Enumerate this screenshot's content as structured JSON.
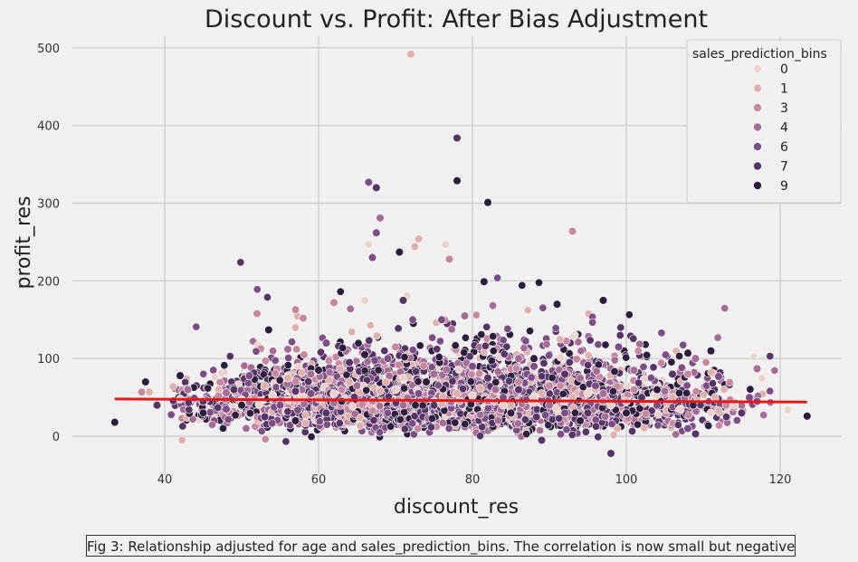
{
  "chart_data": {
    "type": "scatter",
    "title": "Discount vs. Profit: After Bias Adjustment",
    "xlabel": "discount_res",
    "ylabel": "profit_res",
    "xlim": [
      28,
      128
    ],
    "ylim": [
      -50,
      515
    ],
    "xticks": [
      40,
      60,
      80,
      100,
      120
    ],
    "yticks": [
      0,
      100,
      200,
      300,
      400,
      500
    ],
    "grid": true,
    "legend": {
      "title": "sales_prediction_bins",
      "placement": "top-right",
      "entries": [
        "0",
        "1",
        "3",
        "4",
        "6",
        "7",
        "9"
      ]
    },
    "series_colors": {
      "0": "#edd1cb",
      "1": "#e0b0ac",
      "3": "#c6879f",
      "4": "#a56c95",
      "6": "#7d4e85",
      "7": "#553466",
      "9": "#2d1e3e"
    },
    "regression_line": {
      "x": [
        33.5,
        123.5
      ],
      "y": [
        48,
        44
      ],
      "color": "#e3191c"
    },
    "series": [
      {
        "name": "0",
        "points": [
          [
            42,
            48
          ],
          [
            50,
            47
          ],
          [
            54,
            52
          ],
          [
            58,
            50
          ],
          [
            62,
            55
          ],
          [
            66.5,
            247
          ],
          [
            66,
            175
          ],
          [
            70,
            60
          ],
          [
            71.5,
            181
          ],
          [
            75,
            45
          ],
          [
            76.5,
            247
          ],
          [
            80,
            52
          ],
          [
            84,
            40
          ],
          [
            88,
            50
          ],
          [
            92,
            45
          ],
          [
            95,
            55
          ],
          [
            98,
            40
          ],
          [
            103,
            45
          ],
          [
            107,
            35
          ],
          [
            111,
            30
          ],
          [
            114,
            40
          ],
          [
            121,
            34
          ]
        ]
      },
      {
        "name": "1",
        "points": [
          [
            38,
            57
          ],
          [
            47,
            60
          ],
          [
            53,
            65
          ],
          [
            56,
            75
          ],
          [
            57,
            140
          ],
          [
            60,
            48
          ],
          [
            64,
            70
          ],
          [
            68,
            58
          ],
          [
            72,
            492
          ],
          [
            72.5,
            244
          ],
          [
            73,
            254
          ],
          [
            78,
            55
          ],
          [
            81,
            62
          ],
          [
            85,
            40
          ],
          [
            89,
            55
          ],
          [
            93,
            50
          ],
          [
            96,
            60
          ],
          [
            100,
            45
          ],
          [
            106,
            50
          ],
          [
            112,
            33
          ]
        ]
      },
      {
        "name": "3",
        "points": [
          [
            37,
            57
          ],
          [
            47,
            52
          ],
          [
            52,
            158
          ],
          [
            57,
            163
          ],
          [
            58,
            152
          ],
          [
            62,
            172
          ],
          [
            63,
            60
          ],
          [
            67,
            45
          ],
          [
            70,
            115
          ],
          [
            74,
            66
          ],
          [
            77,
            228
          ],
          [
            82,
            45
          ],
          [
            86,
            70
          ],
          [
            90,
            65
          ],
          [
            93,
            264
          ],
          [
            97,
            45
          ],
          [
            101,
            60
          ],
          [
            105,
            55
          ],
          [
            108,
            80
          ],
          [
            113,
            40
          ]
        ]
      },
      {
        "name": "4",
        "points": [
          [
            43,
            60
          ],
          [
            48,
            56
          ],
          [
            51,
            44
          ],
          [
            56,
            112
          ],
          [
            59,
            80
          ],
          [
            62,
            43
          ],
          [
            65,
            65
          ],
          [
            68,
            281
          ],
          [
            71,
            40
          ],
          [
            75,
            80
          ],
          [
            79,
            155
          ],
          [
            83,
            60
          ],
          [
            86,
            100
          ],
          [
            90,
            40
          ],
          [
            94,
            75
          ],
          [
            97,
            55
          ],
          [
            101,
            85
          ],
          [
            105,
            58
          ],
          [
            109,
            100
          ],
          [
            117,
            87
          ]
        ]
      },
      {
        "name": "6",
        "points": [
          [
            48,
            35
          ],
          [
            51,
            78
          ],
          [
            55,
            40
          ],
          [
            59,
            55
          ],
          [
            61,
            120
          ],
          [
            66.5,
            327
          ],
          [
            67,
            230
          ],
          [
            67.5,
            262
          ],
          [
            69,
            100
          ],
          [
            73,
            55
          ],
          [
            76,
            150
          ],
          [
            80,
            90
          ],
          [
            84,
            50
          ],
          [
            88,
            90
          ],
          [
            92,
            30
          ],
          [
            96,
            65
          ],
          [
            99,
            115
          ],
          [
            104,
            40
          ],
          [
            108,
            10
          ],
          [
            112,
            77
          ],
          [
            116,
            50
          ],
          [
            117,
            45
          ]
        ]
      },
      {
        "name": "7",
        "points": [
          [
            39,
            40
          ],
          [
            45,
            45
          ],
          [
            49,
            60
          ],
          [
            53,
            25
          ],
          [
            57,
            58
          ],
          [
            61,
            30
          ],
          [
            64,
            95
          ],
          [
            67.5,
            320
          ],
          [
            71,
            175
          ],
          [
            75,
            40
          ],
          [
            78,
            384
          ],
          [
            82,
            75
          ],
          [
            86,
            60
          ],
          [
            89,
            -5
          ],
          [
            92,
            80
          ],
          [
            95,
            30
          ],
          [
            98,
            -22
          ],
          [
            102,
            50
          ],
          [
            106,
            80
          ],
          [
            109,
            3
          ],
          [
            115,
            30
          ]
        ]
      },
      {
        "name": "9",
        "points": [
          [
            33.5,
            18
          ],
          [
            37.5,
            70
          ],
          [
            42,
            78
          ],
          [
            45,
            30
          ],
          [
            50,
            40
          ],
          [
            53.5,
            137
          ],
          [
            57,
            20
          ],
          [
            60,
            85
          ],
          [
            63,
            45
          ],
          [
            66,
            105
          ],
          [
            70.5,
            237
          ],
          [
            74,
            70
          ],
          [
            78,
            329
          ],
          [
            81.5,
            199
          ],
          [
            82,
            301
          ],
          [
            85,
            30
          ],
          [
            88,
            100
          ],
          [
            91,
            170
          ],
          [
            94,
            20
          ],
          [
            97,
            175
          ],
          [
            100,
            30
          ],
          [
            104,
            60
          ],
          [
            108,
            107
          ],
          [
            111,
            110
          ],
          [
            123.5,
            26
          ]
        ]
      }
    ]
  },
  "caption": {
    "text": "Fig 3: Relationship adjusted for age and sales_prediction_bins. The correlation is now small but negative."
  }
}
